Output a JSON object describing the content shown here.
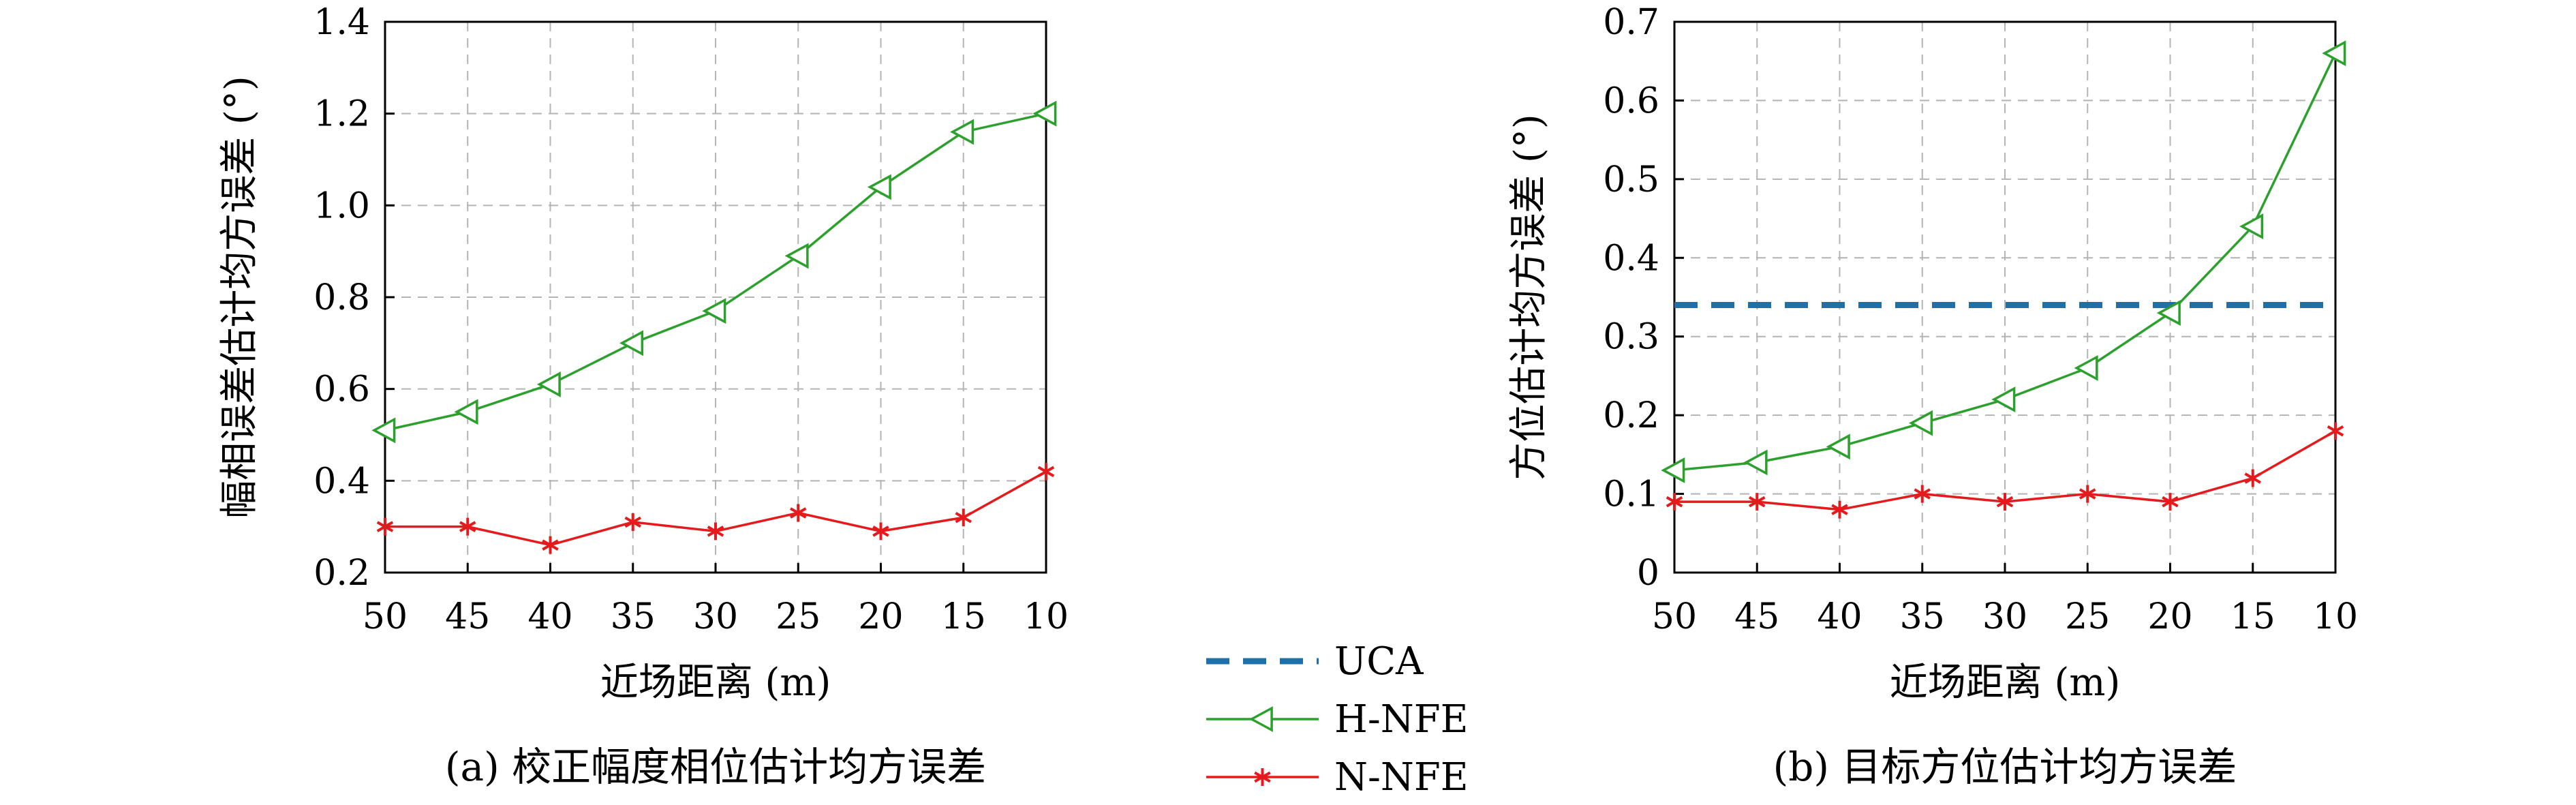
{
  "chart_data": [
    {
      "type": "line",
      "x": [
        50,
        45,
        40,
        35,
        30,
        25,
        20,
        15,
        10
      ],
      "xlabel": "近场距离 (m)",
      "ylabel": "幅相误差估计均方误差 (°)",
      "caption": "(a) 校正幅度相位估计均方误差",
      "ylim": [
        0.2,
        1.4
      ],
      "yticks": [
        "0.2",
        "0.4",
        "0.6",
        "0.8",
        "1.0",
        "1.2",
        "1.4"
      ],
      "xticks": [
        "50",
        "45",
        "40",
        "35",
        "30",
        "25",
        "20",
        "15",
        "10"
      ],
      "grid": true,
      "series": [
        {
          "name": "H-NFE",
          "color": "#2ca02c",
          "marker": "triangle-left",
          "values": [
            0.51,
            0.55,
            0.61,
            0.7,
            0.77,
            0.89,
            1.04,
            1.16,
            1.2
          ]
        },
        {
          "name": "N-NFE",
          "color": "#e41a1c",
          "marker": "asterisk",
          "values": [
            0.3,
            0.3,
            0.26,
            0.31,
            0.29,
            0.33,
            0.29,
            0.32,
            0.42
          ]
        }
      ]
    },
    {
      "type": "line",
      "x": [
        50,
        45,
        40,
        35,
        30,
        25,
        20,
        15,
        10
      ],
      "xlabel": "近场距离 (m)",
      "ylabel": "方位估计均方误差 (°)",
      "caption": "(b) 目标方位估计均方误差",
      "ylim": [
        0,
        0.7
      ],
      "yticks": [
        "0",
        "0.1",
        "0.2",
        "0.3",
        "0.4",
        "0.5",
        "0.6",
        "0.7"
      ],
      "xticks": [
        "50",
        "45",
        "40",
        "35",
        "30",
        "25",
        "20",
        "15",
        "10"
      ],
      "grid": true,
      "series": [
        {
          "name": "UCA",
          "color": "#1f6fa8",
          "marker": "none",
          "dashed": true,
          "values": [
            0.34,
            0.34,
            0.34,
            0.34,
            0.34,
            0.34,
            0.34,
            0.34,
            0.34
          ]
        },
        {
          "name": "H-NFE",
          "color": "#2ca02c",
          "marker": "triangle-left",
          "values": [
            0.13,
            0.14,
            0.16,
            0.19,
            0.22,
            0.26,
            0.33,
            0.44,
            0.66
          ]
        },
        {
          "name": "N-NFE",
          "color": "#e41a1c",
          "marker": "asterisk",
          "values": [
            0.09,
            0.09,
            0.08,
            0.1,
            0.09,
            0.1,
            0.09,
            0.12,
            0.18
          ]
        }
      ]
    }
  ],
  "legend": {
    "placement": "center-bottom",
    "items": [
      {
        "label": "UCA",
        "color": "#1f6fa8",
        "style": "dashed"
      },
      {
        "label": "H-NFE",
        "color": "#2ca02c",
        "style": "triangle-left"
      },
      {
        "label": "N-NFE",
        "color": "#e41a1c",
        "style": "asterisk"
      }
    ]
  }
}
